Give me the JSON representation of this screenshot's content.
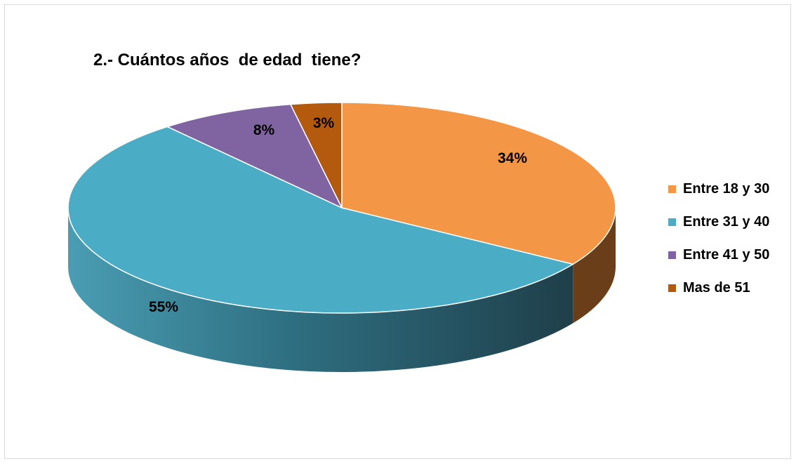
{
  "chart_data": {
    "type": "pie",
    "title": "2.- Cuántos años  de edad  tiene?",
    "categories": [
      "Entre 18 y 30",
      "Entre 31 y 40",
      "Entre 41 y 50",
      "Mas de 51"
    ],
    "values": [
      34,
      55,
      8,
      3
    ],
    "labels": [
      "34%",
      "55%",
      "8%",
      "3%"
    ],
    "unit": "%",
    "colors": [
      "#F39646",
      "#4BACC6",
      "#8064A2",
      "#B35A0F"
    ],
    "side_colors": [
      "#6B3E1A",
      "#3A8497",
      "#5A4477",
      "#5E2F07"
    ],
    "style": "3d",
    "legend": {
      "position": "right",
      "items": [
        "Entre 18 y 30",
        "Entre 31 y 40",
        "Entre 41 y 50",
        "Mas de 51"
      ]
    }
  }
}
